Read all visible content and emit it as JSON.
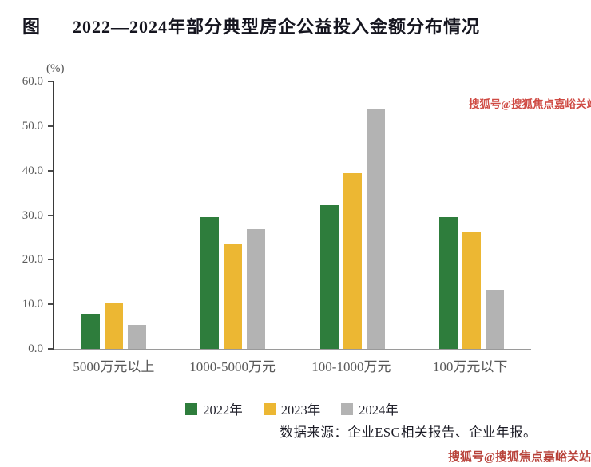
{
  "page": {
    "figure_label": "图",
    "title": "2022—2024年部分典型房企公益投入金额分布情况",
    "watermark_top": "搜狐号@搜狐焦点嘉峪关站",
    "watermark_bottom": "搜狐号@搜狐焦点嘉峪关站",
    "source": "数据来源：企业ESG相关报告、企业年报。"
  },
  "chart_data": {
    "type": "bar",
    "title": "2022—2024年部分典型房企公益投入金额分布情况",
    "unit_label": "(%)",
    "categories": [
      "5000万元以上",
      "1000-5000万元",
      "100-1000万元",
      "100万元以下"
    ],
    "series": [
      {
        "name": "2022年",
        "color": "#2e7d3c",
        "values": [
          7.9,
          29.5,
          32.3,
          29.5
        ]
      },
      {
        "name": "2023年",
        "color": "#ecb733",
        "values": [
          10.3,
          23.5,
          39.4,
          26.2
        ]
      },
      {
        "name": "2024年",
        "color": "#b3b3b3",
        "values": [
          5.3,
          26.8,
          53.9,
          13.3
        ]
      }
    ],
    "ylim": [
      0,
      60
    ],
    "y_ticks": [
      "60.0",
      "50.0",
      "40.0",
      "30.0",
      "20.0",
      "10.0",
      "0.0"
    ],
    "grid": false,
    "legend_position": "bottom"
  }
}
